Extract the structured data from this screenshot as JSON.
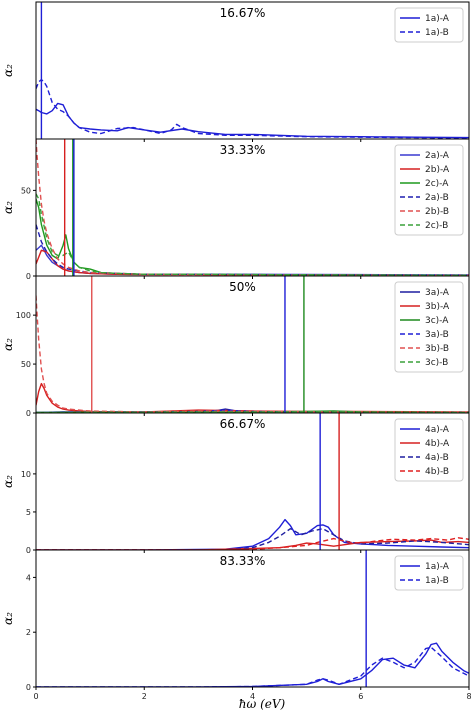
{
  "figure": {
    "xlabel": "ħω (eV)",
    "xlim": [
      0,
      8
    ],
    "xticks": [
      0,
      2,
      4,
      6,
      8
    ]
  },
  "chart_data": [
    {
      "type": "line",
      "title": "16.67%",
      "ylabel": "α₂",
      "ylim": [
        0,
        30
      ],
      "yticks": [],
      "series": [
        {
          "name": "1a)-A",
          "color": "#1f1fd6",
          "dash": false,
          "x": [
            0,
            0.05,
            0.1,
            0.2,
            0.3,
            0.4,
            0.5,
            0.6,
            0.7,
            0.8,
            1.0,
            1.2,
            1.5,
            1.7,
            2.0,
            2.3,
            2.7,
            3.0,
            3.5,
            4.0,
            5.0,
            6.0,
            7.0,
            8.0
          ],
          "y": [
            6.5,
            6.2,
            5.8,
            5.5,
            6.2,
            7.8,
            7.5,
            5.0,
            3.5,
            2.5,
            2.2,
            2.0,
            1.8,
            2.5,
            2.0,
            1.5,
            2.2,
            1.6,
            1.0,
            1.0,
            0.6,
            0.5,
            0.4,
            0.3
          ]
        },
        {
          "name": "1a)-B",
          "color": "#1f1fd6",
          "dash": true,
          "x": [
            0,
            0.05,
            0.1,
            0.15,
            0.2,
            0.3,
            0.4,
            0.5,
            0.6,
            0.7,
            0.8,
            1.0,
            1.2,
            1.5,
            1.8,
            2.0,
            2.3,
            2.5,
            2.6,
            2.7,
            3.0,
            3.5,
            4.0,
            5.0,
            6.0,
            7.0,
            8.0
          ],
          "y": [
            11.0,
            12.5,
            13.0,
            12.5,
            11.5,
            8.0,
            6.5,
            6.0,
            5.0,
            3.5,
            2.5,
            1.5,
            1.2,
            2.3,
            2.5,
            2.0,
            1.2,
            2.0,
            3.2,
            2.5,
            1.2,
            0.8,
            0.8,
            0.5,
            0.4,
            0.3,
            0.2
          ]
        },
        {
          "name": "",
          "color": "#1f1fd6",
          "vline": 0.1
        }
      ]
    },
    {
      "type": "line",
      "title": "33.33%",
      "ylabel": "α₂",
      "ylim": [
        0,
        80
      ],
      "yticks": [
        0,
        50
      ],
      "series": [
        {
          "name": "2a)-A",
          "color": "#3a3ad0",
          "dash": false,
          "x": [
            0,
            0.1,
            0.2,
            0.3,
            0.4,
            0.5,
            0.6,
            0.8,
            1.0,
            1.5,
            2.0,
            3.0,
            4.0,
            6.0,
            8.0
          ],
          "y": [
            15,
            18,
            12,
            8,
            6,
            4,
            3,
            2,
            1.5,
            1.0,
            1.0,
            1.0,
            1.0,
            0.8,
            0.6
          ]
        },
        {
          "name": "2b)-A",
          "color": "#d62020",
          "dash": false,
          "x": [
            0,
            0.1,
            0.2,
            0.3,
            0.4,
            0.5,
            0.6,
            0.8,
            1.0,
            1.5,
            2.0,
            3.0,
            4.0,
            6.0,
            8.0
          ],
          "y": [
            7,
            15,
            14,
            10,
            6,
            4,
            3,
            2,
            1.5,
            1.0,
            0.8,
            0.8,
            0.6,
            0.5,
            0.4
          ]
        },
        {
          "name": "2c)-A",
          "color": "#1f9a1f",
          "dash": false,
          "x": [
            0,
            0.05,
            0.1,
            0.2,
            0.3,
            0.4,
            0.5,
            0.55,
            0.6,
            0.7,
            0.8,
            1.0,
            1.2,
            1.5,
            2.0,
            3.0,
            4.0,
            6.0,
            8.0
          ],
          "y": [
            45,
            40,
            30,
            18,
            12,
            10,
            18,
            24,
            16,
            8,
            5,
            4,
            2,
            1.5,
            1.0,
            1.0,
            0.8,
            0.5,
            0.4
          ]
        },
        {
          "name": "2a)-B",
          "color": "#1f1fb0",
          "dash": true,
          "x": [
            0,
            0.05,
            0.1,
            0.2,
            0.3,
            0.4,
            0.5,
            0.6,
            0.8,
            1.0,
            1.5,
            2.0,
            3.0,
            4.0,
            6.0,
            8.0
          ],
          "y": [
            30,
            25,
            20,
            14,
            10,
            7,
            5,
            4,
            3,
            2,
            1.5,
            1.0,
            1.0,
            0.8,
            0.6,
            0.5
          ]
        },
        {
          "name": "2b)-B",
          "color": "#e05050",
          "dash": true,
          "x": [
            0,
            0.02,
            0.05,
            0.1,
            0.15,
            0.2,
            0.3,
            0.4,
            0.5,
            0.6,
            0.8,
            1.0,
            1.5,
            2.0,
            3.0,
            4.0,
            6.0,
            8.0
          ],
          "y": [
            80,
            70,
            58,
            42,
            32,
            25,
            16,
            10,
            7,
            5,
            3,
            2,
            1.5,
            1.0,
            0.8,
            0.6,
            0.5,
            0.4
          ]
        },
        {
          "name": "2c)-B",
          "color": "#3aa03a",
          "dash": true,
          "x": [
            0,
            0.05,
            0.1,
            0.2,
            0.3,
            0.4,
            0.5,
            0.6,
            0.7,
            0.8,
            1.0,
            1.2,
            1.5,
            2.0,
            3.0,
            4.0,
            6.0,
            8.0
          ],
          "y": [
            48,
            45,
            36,
            22,
            14,
            12,
            12,
            14,
            8,
            5,
            3,
            2,
            1.5,
            1.0,
            1.0,
            0.8,
            0.5,
            0.4
          ]
        },
        {
          "name": "",
          "color": "#d62020",
          "vline": 0.53
        },
        {
          "name": "",
          "color": "#1f9a1f",
          "vline": 0.68
        },
        {
          "name": "",
          "color": "#1f1fd6",
          "vline": 0.7
        }
      ]
    },
    {
      "type": "line",
      "title": "50%",
      "ylabel": "α₂",
      "ylim": [
        0,
        140
      ],
      "yticks": [
        0,
        50,
        100
      ],
      "series": [
        {
          "name": "3a)-A",
          "color": "#1f1fa0",
          "dash": false,
          "x": [
            0,
            0.5,
            1.0,
            2.0,
            3.0,
            3.3,
            3.5,
            3.7,
            4.0,
            5.0,
            6.0,
            7.0,
            8.0
          ],
          "y": [
            0.5,
            1.0,
            1.0,
            1.0,
            1.5,
            2.0,
            4.0,
            2.0,
            1.5,
            1.0,
            1.0,
            0.8,
            0.5
          ]
        },
        {
          "name": "3b)-A",
          "color": "#d62020",
          "dash": false,
          "x": [
            0,
            0.05,
            0.1,
            0.15,
            0.2,
            0.3,
            0.4,
            0.5,
            0.6,
            0.8,
            1.0,
            1.5,
            2.0,
            3.0,
            4.0,
            5.0,
            6.0,
            8.0
          ],
          "y": [
            8,
            22,
            30,
            25,
            18,
            10,
            6,
            4,
            3,
            2,
            1.5,
            1.0,
            1.0,
            3.0,
            2.0,
            1.5,
            1.5,
            1.0
          ]
        },
        {
          "name": "3c)-A",
          "color": "#1f8a1f",
          "dash": false,
          "x": [
            0,
            1.0,
            2.0,
            3.0,
            4.0,
            5.0,
            5.5,
            6.0,
            7.0,
            8.0
          ],
          "y": [
            0.5,
            0.8,
            0.8,
            1.0,
            1.0,
            1.5,
            2.0,
            1.0,
            0.8,
            0.5
          ]
        },
        {
          "name": "3a)-B",
          "color": "#1f1fd6",
          "dash": true,
          "x": [
            0,
            0.5,
            1.0,
            2.0,
            3.0,
            3.5,
            4.0,
            5.0,
            6.0,
            8.0
          ],
          "y": [
            0.5,
            1.0,
            1.0,
            1.0,
            1.5,
            3.0,
            1.5,
            1.0,
            0.8,
            0.5
          ]
        },
        {
          "name": "3b)-B",
          "color": "#e05050",
          "dash": true,
          "x": [
            0,
            0.02,
            0.05,
            0.1,
            0.15,
            0.2,
            0.3,
            0.4,
            0.5,
            0.6,
            0.8,
            1.0,
            1.5,
            2.0,
            3.0,
            4.0,
            6.0,
            8.0
          ],
          "y": [
            120,
            100,
            75,
            45,
            30,
            20,
            12,
            8,
            5,
            4,
            3,
            2,
            1.5,
            1.0,
            2.0,
            1.5,
            1.0,
            0.8
          ]
        },
        {
          "name": "3c)-B",
          "color": "#3aa03a",
          "dash": true,
          "x": [
            0,
            1.0,
            2.0,
            3.0,
            4.0,
            5.0,
            6.0,
            8.0
          ],
          "y": [
            0.5,
            0.8,
            0.8,
            1.0,
            1.0,
            1.2,
            1.0,
            0.5
          ]
        },
        {
          "name": "",
          "color": "#e05050",
          "vline": 1.03
        },
        {
          "name": "",
          "color": "#1f1fd6",
          "vline": 4.6
        },
        {
          "name": "",
          "color": "#1f8a1f",
          "vline": 4.95
        }
      ]
    },
    {
      "type": "line",
      "title": "66.67%",
      "ylabel": "α₂",
      "ylim": [
        0,
        18
      ],
      "yticks": [
        0,
        5,
        10
      ],
      "series": [
        {
          "name": "4a)-A",
          "color": "#1f1fd6",
          "dash": false,
          "x": [
            0,
            2.0,
            3.5,
            4.0,
            4.3,
            4.5,
            4.6,
            4.7,
            4.8,
            5.0,
            5.2,
            5.3,
            5.4,
            5.5,
            5.7,
            6.0,
            6.5,
            7.0,
            7.5,
            8.0
          ],
          "y": [
            0,
            0,
            0.1,
            0.5,
            1.5,
            3.0,
            4.0,
            3.2,
            2.0,
            2.2,
            3.2,
            3.3,
            3.0,
            2.0,
            1.0,
            0.8,
            0.6,
            0.5,
            0.4,
            0.3
          ]
        },
        {
          "name": "4b)-A",
          "color": "#d62020",
          "dash": false,
          "x": [
            0,
            3.0,
            4.0,
            4.5,
            4.8,
            5.0,
            5.2,
            5.5,
            5.8,
            6.0,
            6.5,
            7.0,
            7.3,
            7.5,
            7.8,
            8.0
          ],
          "y": [
            0,
            0,
            0.2,
            0.3,
            0.6,
            0.9,
            0.8,
            0.5,
            0.8,
            1.0,
            1.1,
            1.2,
            1.3,
            1.0,
            1.1,
            1.0
          ]
        },
        {
          "name": "4a)-B",
          "color": "#1f1fa0",
          "dash": true,
          "x": [
            0,
            3.5,
            4.0,
            4.3,
            4.5,
            4.7,
            4.9,
            5.1,
            5.3,
            5.5,
            5.7,
            6.0,
            6.5,
            7.0,
            7.5,
            8.0
          ],
          "y": [
            0,
            0,
            0.3,
            1.0,
            1.8,
            2.8,
            2.0,
            2.5,
            2.8,
            2.0,
            1.2,
            0.8,
            0.9,
            1.2,
            1.0,
            0.7
          ]
        },
        {
          "name": "4b)-B",
          "color": "#e02020",
          "dash": true,
          "x": [
            0,
            3.0,
            4.0,
            4.5,
            5.0,
            5.2,
            5.5,
            5.8,
            6.0,
            6.3,
            6.6,
            7.0,
            7.3,
            7.6,
            7.8,
            8.0
          ],
          "y": [
            0,
            0,
            0.1,
            0.3,
            0.6,
            1.0,
            1.5,
            1.0,
            0.9,
            1.2,
            1.4,
            1.3,
            1.5,
            1.3,
            1.6,
            1.4
          ]
        },
        {
          "name": "",
          "color": "#1f1fd6",
          "vline": 5.25
        },
        {
          "name": "",
          "color": "#d62020",
          "vline": 5.6
        }
      ]
    },
    {
      "type": "line",
      "title": "83.33%",
      "ylabel": "α₂",
      "ylim": [
        0,
        5
      ],
      "yticks": [
        0,
        2,
        4
      ],
      "series": [
        {
          "name": "1a)-A",
          "color": "#1f1fd6",
          "dash": false,
          "x": [
            0,
            3.0,
            4.0,
            5.0,
            5.2,
            5.3,
            5.4,
            5.6,
            6.0,
            6.2,
            6.4,
            6.6,
            6.8,
            7.0,
            7.2,
            7.3,
            7.4,
            7.5,
            7.7,
            7.9,
            8.0
          ],
          "y": [
            0,
            0,
            0.02,
            0.1,
            0.2,
            0.3,
            0.2,
            0.1,
            0.3,
            0.6,
            1.0,
            1.05,
            0.8,
            0.7,
            1.2,
            1.55,
            1.6,
            1.3,
            0.9,
            0.6,
            0.5
          ]
        },
        {
          "name": "1a)-B",
          "color": "#1f1fd6",
          "dash": true,
          "x": [
            0,
            3.0,
            4.0,
            5.0,
            5.2,
            5.3,
            5.4,
            5.6,
            6.0,
            6.2,
            6.4,
            6.6,
            6.8,
            7.0,
            7.2,
            7.3,
            7.5,
            7.7,
            7.9,
            8.0
          ],
          "y": [
            0,
            0,
            0.02,
            0.1,
            0.25,
            0.3,
            0.25,
            0.1,
            0.4,
            0.8,
            1.05,
            0.9,
            0.7,
            0.9,
            1.4,
            1.45,
            1.1,
            0.7,
            0.5,
            0.4
          ]
        },
        {
          "name": "",
          "color": "#1f1fd6",
          "vline": 6.1
        }
      ]
    }
  ]
}
